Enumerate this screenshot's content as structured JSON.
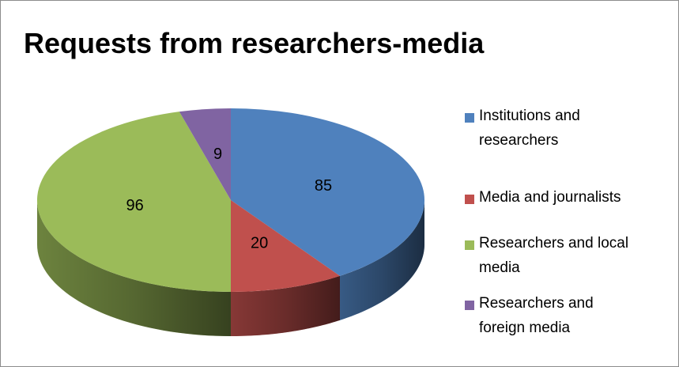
{
  "chart_data": {
    "type": "pie",
    "title": "Requests from researchers-media",
    "categories": [
      "Institutions and researchers",
      "Media and journalists",
      "Researchers and local media",
      "Researchers and foreign media"
    ],
    "values": [
      85,
      20,
      96,
      9
    ],
    "colors": [
      "#4f81bd",
      "#c0504d",
      "#9bbb59",
      "#8064a2"
    ],
    "legend": "right"
  }
}
